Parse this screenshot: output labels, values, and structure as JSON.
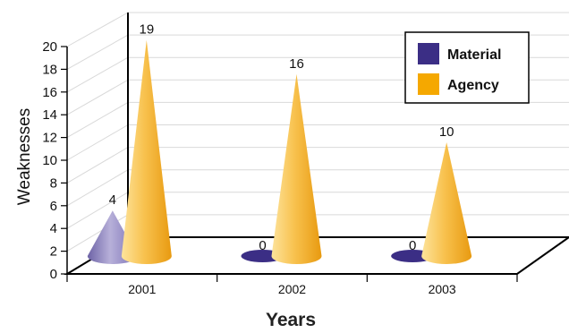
{
  "chart_data": {
    "type": "bar",
    "title": "",
    "xlabel": "Years",
    "ylabel": "Weaknesses",
    "categories": [
      "2001",
      "2002",
      "2003"
    ],
    "series": [
      {
        "name": "Material",
        "values": [
          4,
          0,
          0
        ],
        "color": "#3b2e85"
      },
      {
        "name": "Agency",
        "values": [
          19,
          16,
          10
        ],
        "color": "#f5a800"
      }
    ],
    "ylim": [
      0,
      20
    ],
    "yticks": [
      "0",
      "2",
      "4",
      "6",
      "8",
      "10",
      "12",
      "14",
      "16",
      "18",
      "20"
    ],
    "mark_shape": "cone",
    "grid": "3d-gridlines",
    "legend_position": "top-right"
  }
}
